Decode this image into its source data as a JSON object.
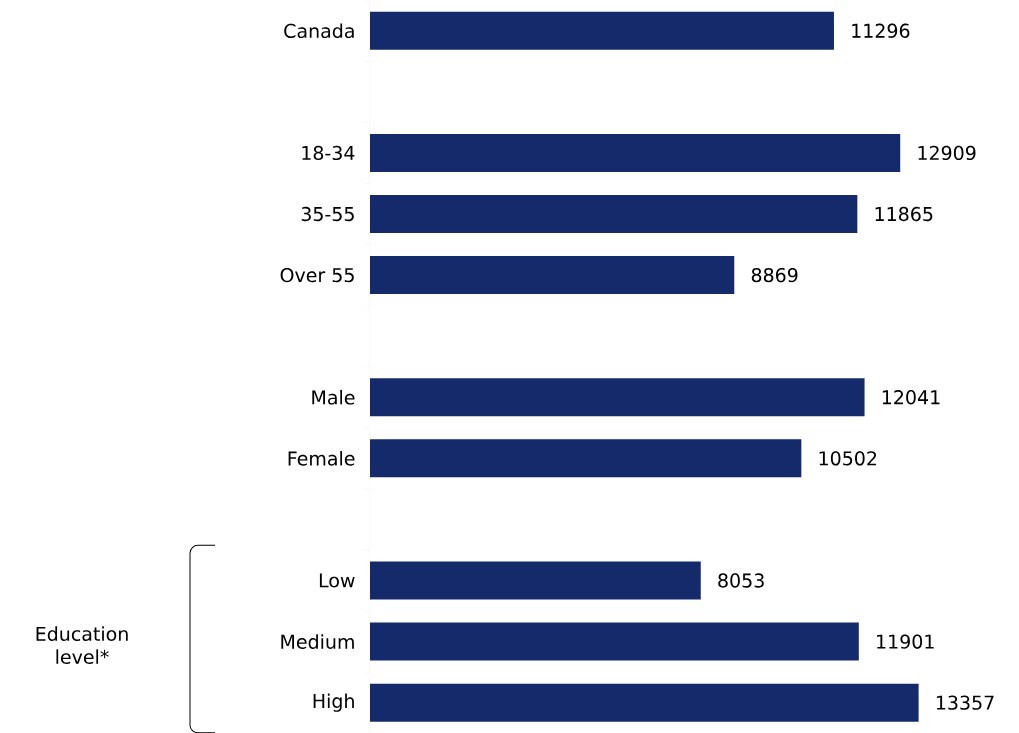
{
  "chart_data": {
    "type": "bar",
    "orientation": "horizontal",
    "categories": [
      "Canada",
      null,
      "18-34",
      "35-55",
      "Over 55",
      null,
      "Male",
      "Female",
      null,
      "Low",
      "Medium",
      "High"
    ],
    "values": [
      11296,
      null,
      12909,
      11865,
      8869,
      null,
      12041,
      10502,
      null,
      8053,
      11901,
      13357
    ],
    "color": "#152a6b",
    "data_labels": true,
    "tick_labels": "y",
    "annotations": [
      "Education level*"
    ]
  }
}
